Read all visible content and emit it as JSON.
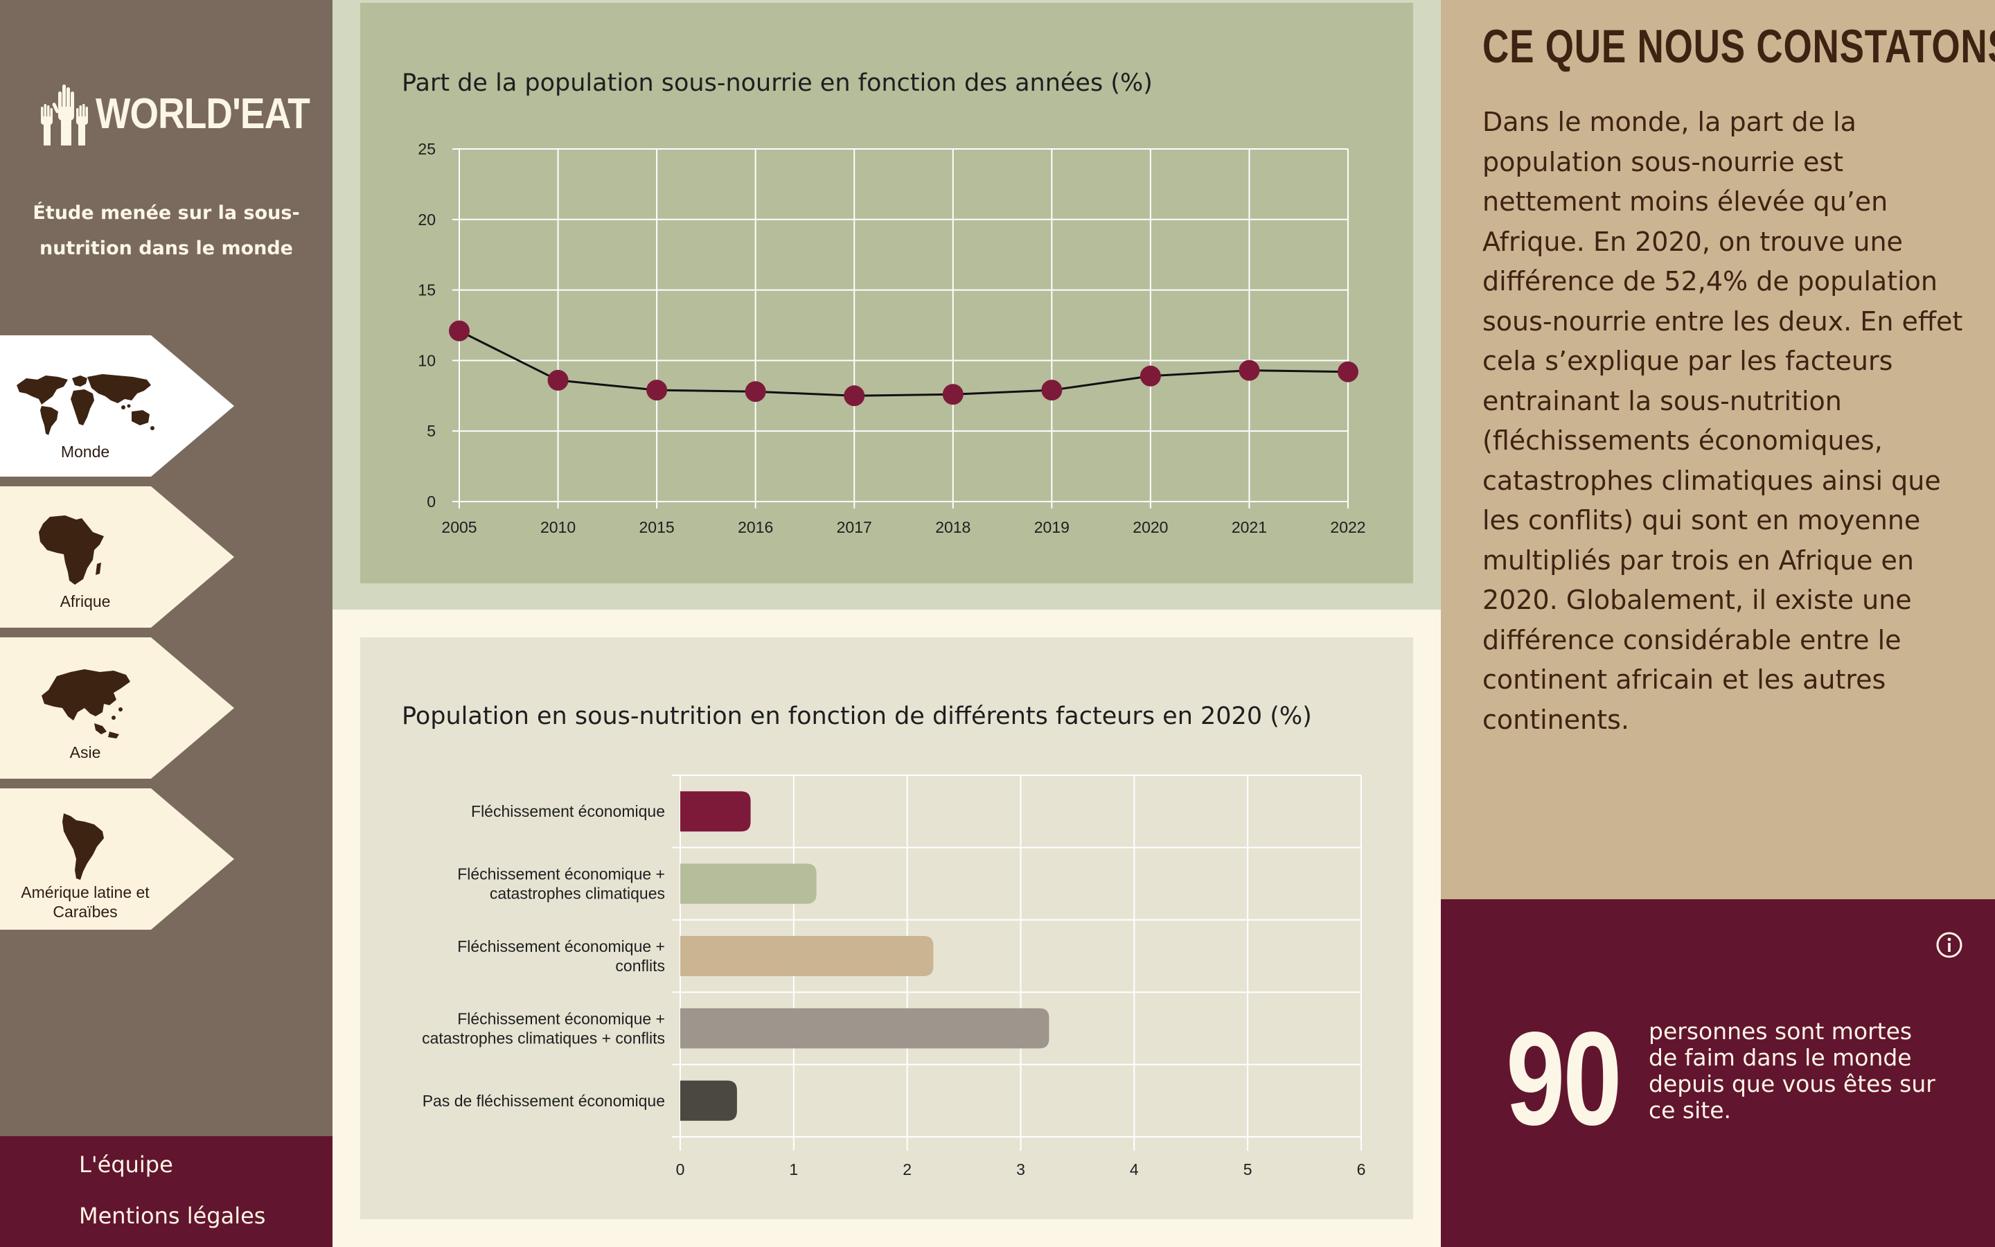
{
  "brand": {
    "name": "WORLD'EAT"
  },
  "sidebar": {
    "subtitle": "Étude menée sur la sous-nutrition dans le monde",
    "items": [
      {
        "label": "Monde",
        "icon": "world-map-icon",
        "active": true
      },
      {
        "label": "Afrique",
        "icon": "africa-map-icon",
        "active": false
      },
      {
        "label": "Asie",
        "icon": "asia-map-icon",
        "active": false
      },
      {
        "label": "Amérique latine et Caraïbes",
        "icon": "latin-america-map-icon",
        "active": false
      }
    ]
  },
  "footer": {
    "links": [
      "L'équipe",
      "Mentions légales"
    ]
  },
  "aside": {
    "title": "CE QUE NOUS CONSTATONS",
    "text": "Dans le monde, la part de la population sous-nourrie est nettement moins élevée qu’en Afrique. En 2020, on trouve une différence de 52,4% de population sous-nourrie entre les deux. En effet cela s’explique par les facteurs entrainant la sous-nutrition (fléchissements économiques, catastrophes climatiques ainsi que les conflits) qui sont en moyenne multipliés par trois en Afrique en 2020. Globalement, il existe une différence considérable entre le continent africain et les autres continents."
  },
  "counter": {
    "value": "90",
    "text": "personnes sont mortes de faim dans le monde depuis que vous êtes sur ce site.",
    "info_icon": "info-icon"
  },
  "colors": {
    "sidebar": "#7a6a5d",
    "burgundy": "#62152e",
    "cream": "#fcf6e6",
    "sand": "#cbb492",
    "sage": "#b5bd9b",
    "dark_brown": "#3d2312"
  },
  "chart_data": [
    {
      "type": "line",
      "title": "Part de la population sous-nourrie en fonction des années (%)",
      "categories": [
        "2005",
        "2010",
        "2015",
        "2016",
        "2017",
        "2018",
        "2019",
        "2020",
        "2021",
        "2022"
      ],
      "values": [
        12.1,
        8.6,
        7.9,
        7.8,
        7.5,
        7.6,
        7.9,
        8.9,
        9.3,
        9.2
      ],
      "ylim": [
        0,
        25
      ],
      "yticks": [
        "0",
        "5",
        "10",
        "15",
        "20",
        "25"
      ],
      "grid": true,
      "line_color": "#111111",
      "marker_color": "#7d1a3a"
    },
    {
      "type": "bar",
      "orientation": "horizontal",
      "title": "Population en sous-nutrition en fonction de différents facteurs en 2020 (%)",
      "categories": [
        [
          "Fléchissement économique"
        ],
        [
          "Fléchissement économique +",
          "catastrophes climatiques"
        ],
        [
          "Fléchissement économique +",
          "conflits"
        ],
        [
          "Fléchissement économique +",
          "catastrophes climatiques + conflits"
        ],
        [
          "Pas de fléchissement économique"
        ]
      ],
      "values": [
        0.62,
        1.2,
        2.23,
        3.25,
        0.5
      ],
      "colors": [
        "#7d1a3a",
        "#b5bd9b",
        "#cbb492",
        "#9e958c",
        "#4a4840"
      ],
      "xlim": [
        0,
        6
      ],
      "xticks": [
        "0",
        "1",
        "2",
        "3",
        "4",
        "5",
        "6"
      ],
      "grid": true
    }
  ]
}
